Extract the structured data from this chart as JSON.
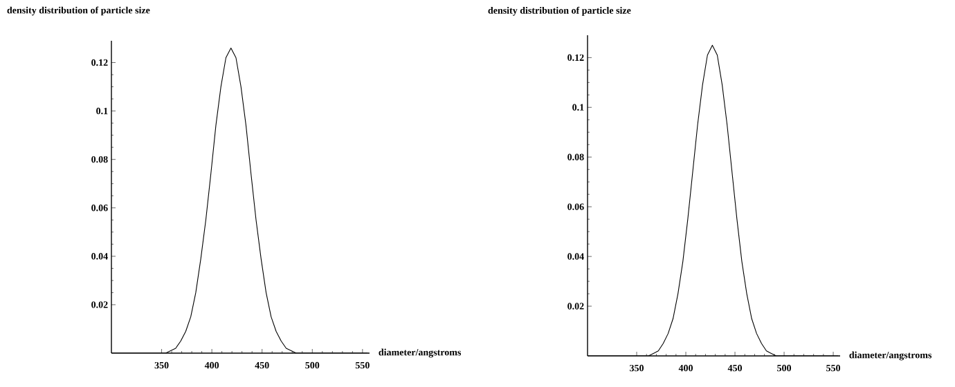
{
  "chart_data": [
    {
      "type": "line",
      "title": "density distribution of particle size",
      "xlabel": "diameter/angstroms",
      "color": "#000000",
      "marker": "none",
      "line_style": "solid",
      "grid": false,
      "x": [
        300,
        354,
        359,
        364,
        369,
        374,
        379,
        384,
        389,
        394,
        399,
        404,
        409,
        414,
        419,
        424,
        429,
        434,
        439,
        444,
        449,
        454,
        459,
        464,
        469,
        474,
        479,
        484,
        555
      ],
      "values": [
        0,
        0,
        0.001,
        0.002,
        0.005,
        0.009,
        0.015,
        0.025,
        0.039,
        0.055,
        0.074,
        0.094,
        0.11,
        0.122,
        0.126,
        0.122,
        0.11,
        0.094,
        0.074,
        0.055,
        0.039,
        0.025,
        0.015,
        0.009,
        0.005,
        0.002,
        0.001,
        0,
        0
      ],
      "xlim": [
        300,
        557
      ],
      "ylim": [
        0,
        0.129
      ],
      "xticks": [
        350,
        400,
        450,
        500,
        550
      ],
      "yticks": [
        0.02,
        0.04,
        0.06,
        0.08,
        0.1,
        0.12
      ]
    },
    {
      "type": "line",
      "title": "density distribution of particle size",
      "xlabel": "diameter/angstroms",
      "color": "#000000",
      "marker": "none",
      "line_style": "solid",
      "grid": false,
      "x": [
        300,
        362,
        367,
        372,
        377,
        382,
        387,
        392,
        397,
        402,
        407,
        412,
        417,
        422,
        427,
        432,
        437,
        442,
        447,
        452,
        457,
        462,
        467,
        472,
        477,
        482,
        487,
        492,
        555
      ],
      "values": [
        0,
        0,
        0.001,
        0.002,
        0.005,
        0.009,
        0.015,
        0.025,
        0.038,
        0.055,
        0.074,
        0.093,
        0.109,
        0.121,
        0.125,
        0.121,
        0.109,
        0.093,
        0.074,
        0.055,
        0.038,
        0.025,
        0.015,
        0.009,
        0.005,
        0.002,
        0.001,
        0,
        0
      ],
      "xlim": [
        300,
        557
      ],
      "ylim": [
        0,
        0.129
      ],
      "xticks": [
        350,
        400,
        450,
        500,
        550
      ],
      "yticks": [
        0.02,
        0.04,
        0.06,
        0.08,
        0.1,
        0.12
      ]
    }
  ]
}
